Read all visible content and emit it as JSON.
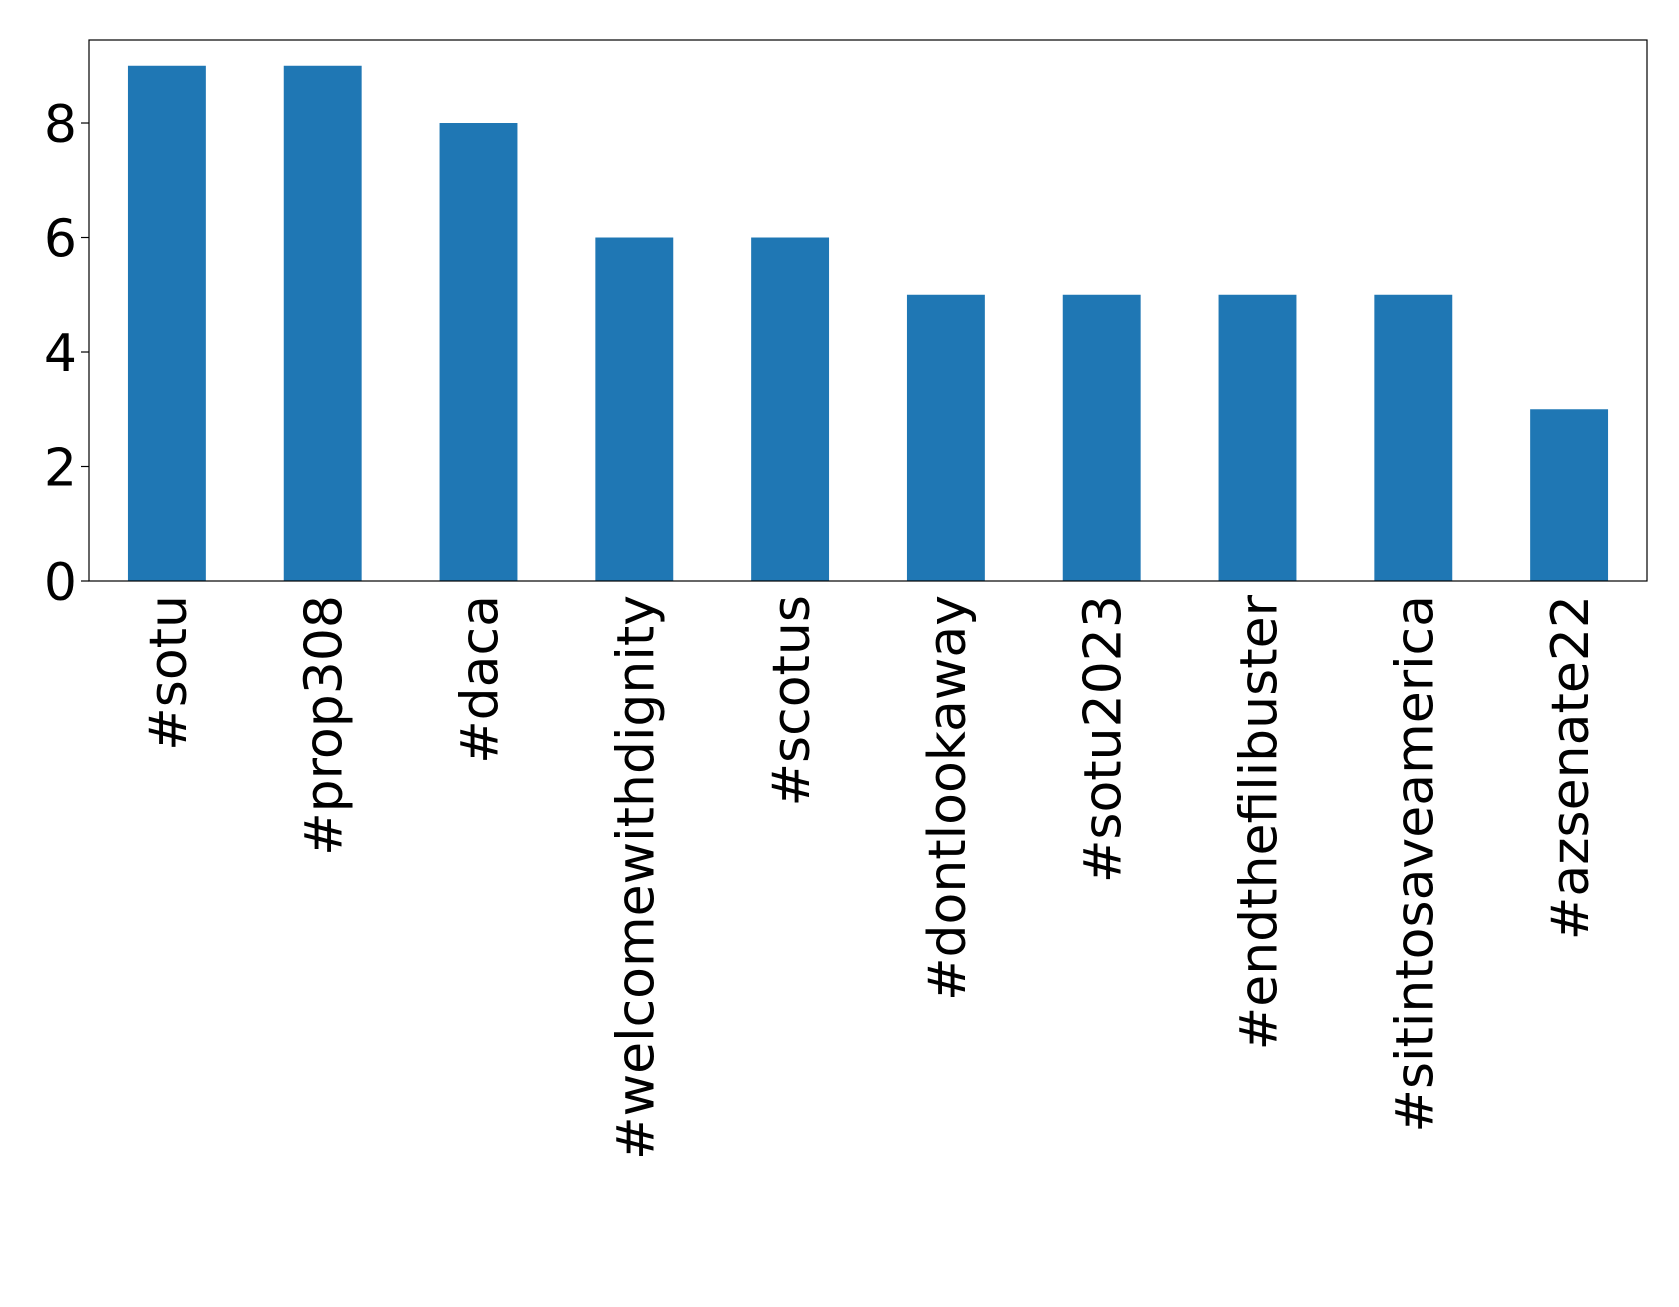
{
  "chart_data": {
    "type": "bar",
    "categories": [
      "#sotu",
      "#prop308",
      "#daca",
      "#welcomewithdignity",
      "#scotus",
      "#dontlookaway",
      "#sotu2023",
      "#endthefilibuster",
      "#sitintosaveamerica",
      "#azsenate22"
    ],
    "values": [
      9,
      9,
      8,
      6,
      6,
      5,
      5,
      5,
      5,
      3
    ],
    "color": "#1f77b4",
    "ylim": [
      0,
      9.45
    ],
    "yticks": [
      0,
      2,
      4,
      6,
      8
    ],
    "grid": false
  }
}
